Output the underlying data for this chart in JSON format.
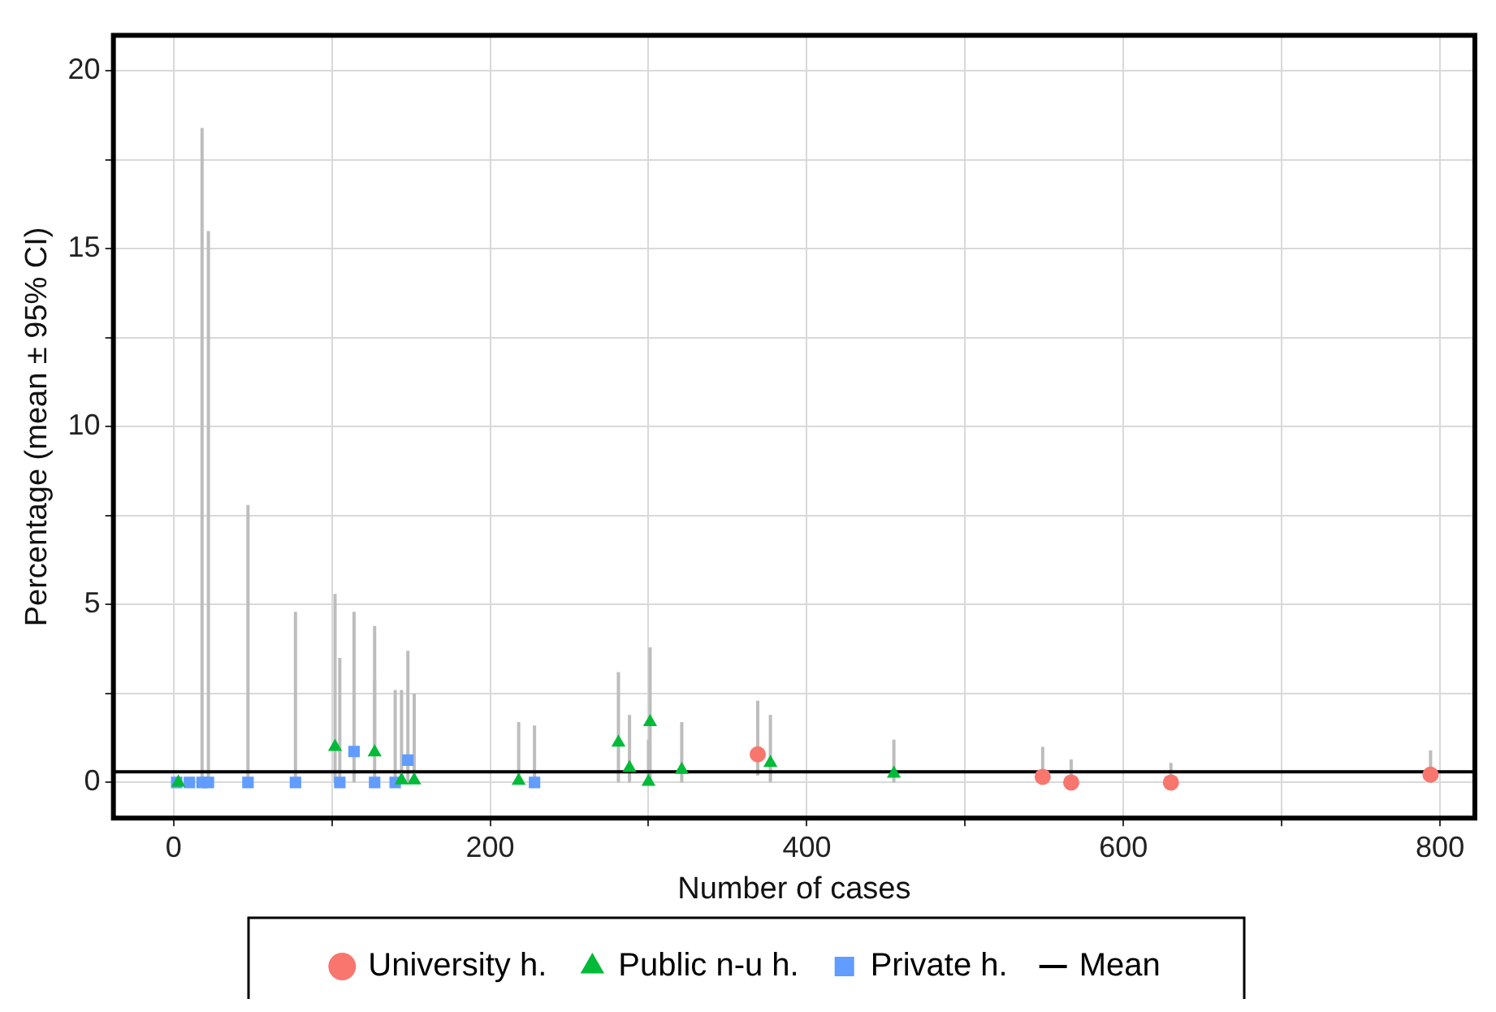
{
  "chart_data": {
    "type": "scatter",
    "xlabel": "Number of cases",
    "ylabel": "Percentage (mean ± 95% CI)",
    "xlim": [
      -38,
      822
    ],
    "ylim": [
      -1,
      21
    ],
    "xticks": [
      0,
      {
        "value": 100,
        "label": null
      },
      200,
      {
        "value": 300,
        "label": null
      },
      400,
      {
        "value": 500,
        "label": null
      },
      600,
      {
        "value": 700,
        "label": null
      },
      800
    ],
    "yticks": [
      0,
      {
        "value": 2.5,
        "label": null
      },
      5,
      {
        "value": 7.5,
        "label": null
      },
      10,
      {
        "value": 12.5,
        "label": null
      },
      15,
      {
        "value": 17.5,
        "label": null
      },
      20
    ],
    "grid": true,
    "legend": "bottom",
    "ref_lines": [
      {
        "axis": "y",
        "value": 0.3,
        "label": "Mean",
        "color": "#000000"
      }
    ],
    "series": [
      {
        "name": "University h.",
        "color": "#f8766d",
        "marker": "circle",
        "x": [
          369,
          549,
          567,
          630,
          794
        ],
        "values": [
          0.79,
          0.16,
          0,
          0,
          0.22
        ],
        "errors": [
          [
            0.2,
            2.3
          ],
          [
            0,
            1.0
          ],
          [
            0,
            0.65
          ],
          [
            0,
            0.55
          ],
          [
            0,
            0.9
          ]
        ]
      },
      {
        "name": "Public n-u h.",
        "color": "#00ba38",
        "marker": "triangle",
        "x": [
          3,
          102,
          127,
          144,
          152,
          218,
          281,
          288,
          300,
          301,
          321,
          377,
          455
        ],
        "values": [
          0,
          1.0,
          0.85,
          0.06,
          0.06,
          0.05,
          1.12,
          0.41,
          0.02,
          1.7,
          0.36,
          0.55,
          0.25
        ],
        "errors": [
          [
            0,
            0
          ],
          [
            0,
            5.3
          ],
          [
            0.85,
            4.4
          ],
          [
            0,
            2.6
          ],
          [
            0,
            2.5
          ],
          [
            0,
            1.7
          ],
          [
            0,
            3.1
          ],
          [
            0,
            1.9
          ],
          [
            0,
            1.2
          ],
          [
            0,
            3.8
          ],
          [
            0,
            1.7
          ],
          [
            0,
            1.9
          ],
          [
            0,
            1.2
          ]
        ]
      },
      {
        "name": "Private h.",
        "color": "#619cff",
        "marker": "square",
        "x": [
          2,
          10,
          18,
          22,
          47,
          77,
          105,
          114,
          127,
          140,
          148,
          228
        ],
        "values": [
          0,
          0,
          0,
          0,
          0,
          0,
          0,
          0.87,
          0,
          0,
          0.63,
          0
        ],
        "errors": [
          [
            0,
            0
          ],
          [
            0,
            0
          ],
          [
            0,
            18.4
          ],
          [
            0,
            15.5
          ],
          [
            0,
            7.8
          ],
          [
            0,
            4.8
          ],
          [
            0,
            3.5
          ],
          [
            0,
            4.8
          ],
          [
            0,
            2.9
          ],
          [
            0,
            2.6
          ],
          [
            0,
            3.7
          ],
          [
            0,
            1.6
          ]
        ]
      }
    ]
  }
}
